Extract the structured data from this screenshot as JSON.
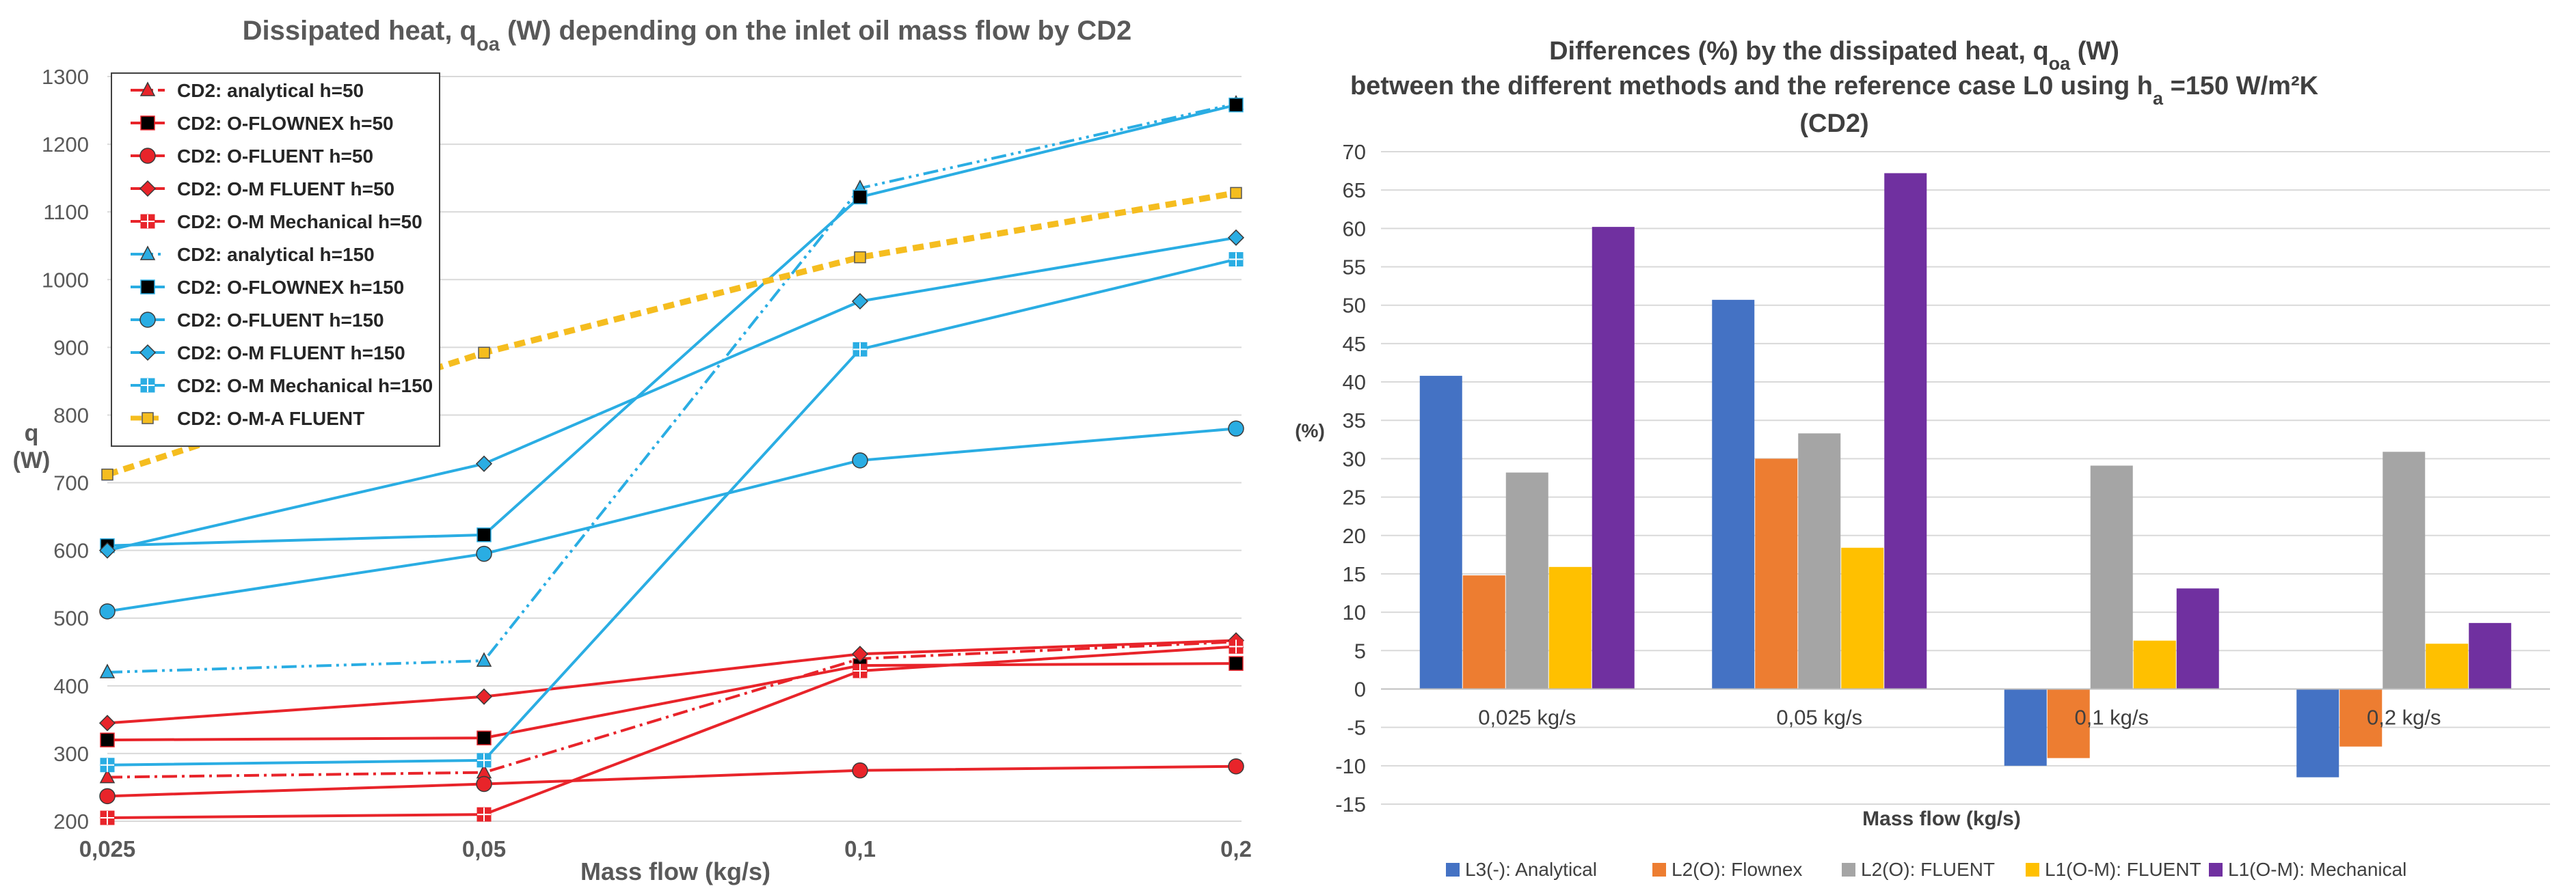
{
  "chart_data": [
    {
      "type": "line",
      "title_parts": [
        "Dissipated heat, q",
        "oa",
        " (W) depending on the inlet oil mass flow by CD2"
      ],
      "xlabel": "Mass flow (kg/s)",
      "ylabel_lines": [
        "q",
        "(W)"
      ],
      "categories": [
        "0,025",
        "0,05",
        "0,1",
        "0,2"
      ],
      "ylim": [
        200,
        1300
      ],
      "yticks": [
        200,
        300,
        400,
        500,
        600,
        700,
        800,
        900,
        1000,
        1100,
        1200,
        1300
      ],
      "grid": "horizontal",
      "legend_position": "top-left",
      "series": [
        {
          "name": "CD2: analytical h=50",
          "values": [
            265,
            272,
            440,
            465
          ],
          "color": "#E8242A",
          "marker": "triangle",
          "dash": "dashdot"
        },
        {
          "name": "CD2: O-FLOWNEX h=50",
          "values": [
            320,
            323,
            430,
            433
          ],
          "color": "#E8242A",
          "marker": "square-black",
          "dash": "solid"
        },
        {
          "name": "CD2: O-FLUENT h=50",
          "values": [
            237,
            255,
            275,
            281
          ],
          "color": "#E8242A",
          "marker": "circle",
          "dash": "solid"
        },
        {
          "name": "CD2: O-M FLUENT h=50",
          "values": [
            345,
            384,
            447,
            467
          ],
          "color": "#E8242A",
          "marker": "diamond",
          "dash": "solid"
        },
        {
          "name": "CD2: O-M Mechanical h=50",
          "values": [
            205,
            210,
            422,
            458
          ],
          "color": "#E8242A",
          "marker": "square-cross",
          "dash": "solid"
        },
        {
          "name": "CD2: analytical h=150",
          "values": [
            420,
            437,
            1135,
            1260
          ],
          "color": "#2AADE3",
          "marker": "triangle",
          "dash": "dashdotdot"
        },
        {
          "name": "CD2: O-FLOWNEX h=150",
          "values": [
            607,
            623,
            1122,
            1258
          ],
          "color": "#2AADE3",
          "marker": "square-black",
          "dash": "solid"
        },
        {
          "name": "CD2: O-FLUENT h=150",
          "values": [
            510,
            595,
            733,
            780
          ],
          "color": "#2AADE3",
          "marker": "circle",
          "dash": "solid"
        },
        {
          "name": "CD2: O-M FLUENT h=150",
          "values": [
            600,
            728,
            968,
            1062
          ],
          "color": "#2AADE3",
          "marker": "diamond",
          "dash": "solid"
        },
        {
          "name": "CD2: O-M Mechanical h=150",
          "values": [
            283,
            290,
            897,
            1030
          ],
          "color": "#2AADE3",
          "marker": "square-cross",
          "dash": "solid"
        },
        {
          "name": "CD2: O-M-A FLUENT",
          "values": [
            712,
            892,
            1033,
            1128
          ],
          "color": "#F5BD1F",
          "marker": "square-yellow",
          "dash": "thickdash"
        }
      ]
    },
    {
      "type": "bar",
      "title_lines": [
        [
          "Differences (%) by the dissipated heat, q",
          "oa",
          " (W)"
        ],
        [
          "between the different methods and the reference case L0  using h",
          "a",
          " =150 W/m²K"
        ],
        [
          "(CD2)"
        ]
      ],
      "xlabel": "Mass flow (kg/s)",
      "ylabel": "(%)",
      "categories": [
        "0,025 kg/s",
        "0,05 kg/s",
        "0,1 kg/s",
        "0,2 kg/s"
      ],
      "ylim": [
        -15,
        70
      ],
      "yticks": [
        -15,
        -10,
        -5,
        0,
        5,
        10,
        15,
        20,
        25,
        30,
        35,
        40,
        45,
        50,
        55,
        60,
        65,
        70
      ],
      "grid": "horizontal",
      "legend_position": "bottom",
      "series": [
        {
          "name": "L3(-): Analytical",
          "values": [
            40.8,
            50.7,
            -10.0,
            -11.5
          ],
          "color": "#4472C4"
        },
        {
          "name": "L2(O): Flownex",
          "values": [
            14.8,
            30.0,
            -9.0,
            -7.5
          ],
          "color": "#ED7D31"
        },
        {
          "name": "L2(O): FLUENT",
          "values": [
            28.2,
            33.3,
            29.1,
            30.9
          ],
          "color": "#A5A5A5"
        },
        {
          "name": "L1(O-M): FLUENT",
          "values": [
            15.9,
            18.4,
            6.3,
            5.9
          ],
          "color": "#FFC000"
        },
        {
          "name": "L1(O-M): Mechanical",
          "values": [
            60.2,
            67.2,
            13.1,
            8.6
          ],
          "color": "#7030A0"
        }
      ]
    }
  ]
}
